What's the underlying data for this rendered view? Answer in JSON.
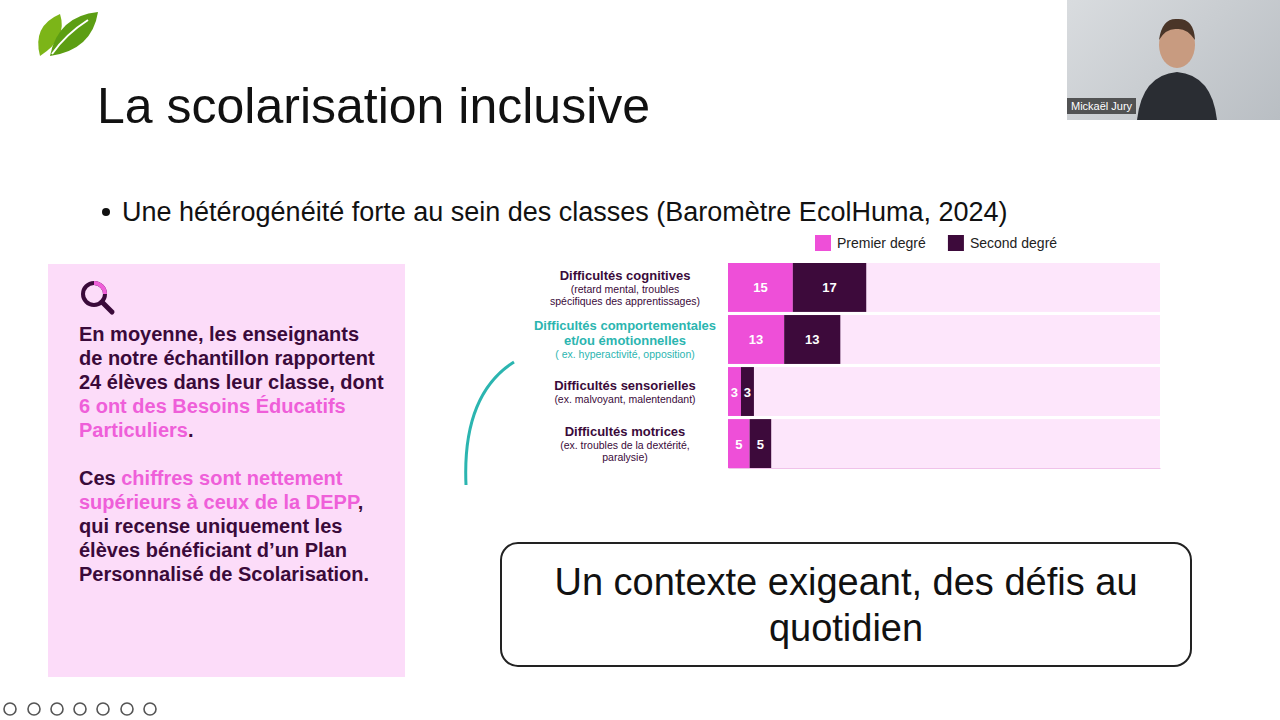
{
  "slide": {
    "title": "La scolarisation inclusive",
    "bullet": "Une hétérogénéité forte au sein des classes (Baromètre EcolHuma, 2024)",
    "callout": {
      "paragraphs": [
        [
          {
            "text": "En moyenne, les enseignants de notre échantillon rapportent 24 élèves dans leur classe, dont ",
            "highlight": false
          },
          {
            "text": "6 ont des Besoins Éducatifs Particuliers",
            "highlight": true
          },
          {
            "text": ".",
            "highlight": false
          }
        ],
        [
          {
            "text": "Ces ",
            "highlight": false
          },
          {
            "text": "chiffres sont nettement supérieurs à ceux de la DEPP",
            "highlight": true
          },
          {
            "text": ", qui recense uniquement les élèves bénéficiant d’un Plan Personnalisé de Scolarisation.",
            "highlight": false
          }
        ]
      ]
    },
    "banner": "Un contexte exigeant, des défis au quotidien",
    "speaker": "Mickaël Jury"
  },
  "chart_data": {
    "type": "bar",
    "orientation": "horizontal",
    "stacked": true,
    "data_labels": true,
    "tick_labels": false,
    "legend": "top",
    "categories": [
      "Difficultés cognitives",
      "Difficultés comportementales\net/ou émotionnelles",
      "Difficultés sensorielles",
      "Difficultés motrices"
    ],
    "category_notes": [
      "(retard mental, troubles\nspécifiques des apprentissages)",
      "( ex. hyperactivité, opposition)",
      "(ex. malvoyant, malentendant)",
      "(ex. troubles de la dextérité,\nparalysie)"
    ],
    "series": [
      {
        "name": "Premier degré",
        "color": "#ee4fd8",
        "values": [
          15,
          13,
          3,
          5
        ]
      },
      {
        "name": "Second degré",
        "color": "#3d0a3b",
        "values": [
          17,
          13,
          3,
          5
        ]
      }
    ],
    "xlim": [
      0,
      100
    ],
    "xticks": []
  }
}
